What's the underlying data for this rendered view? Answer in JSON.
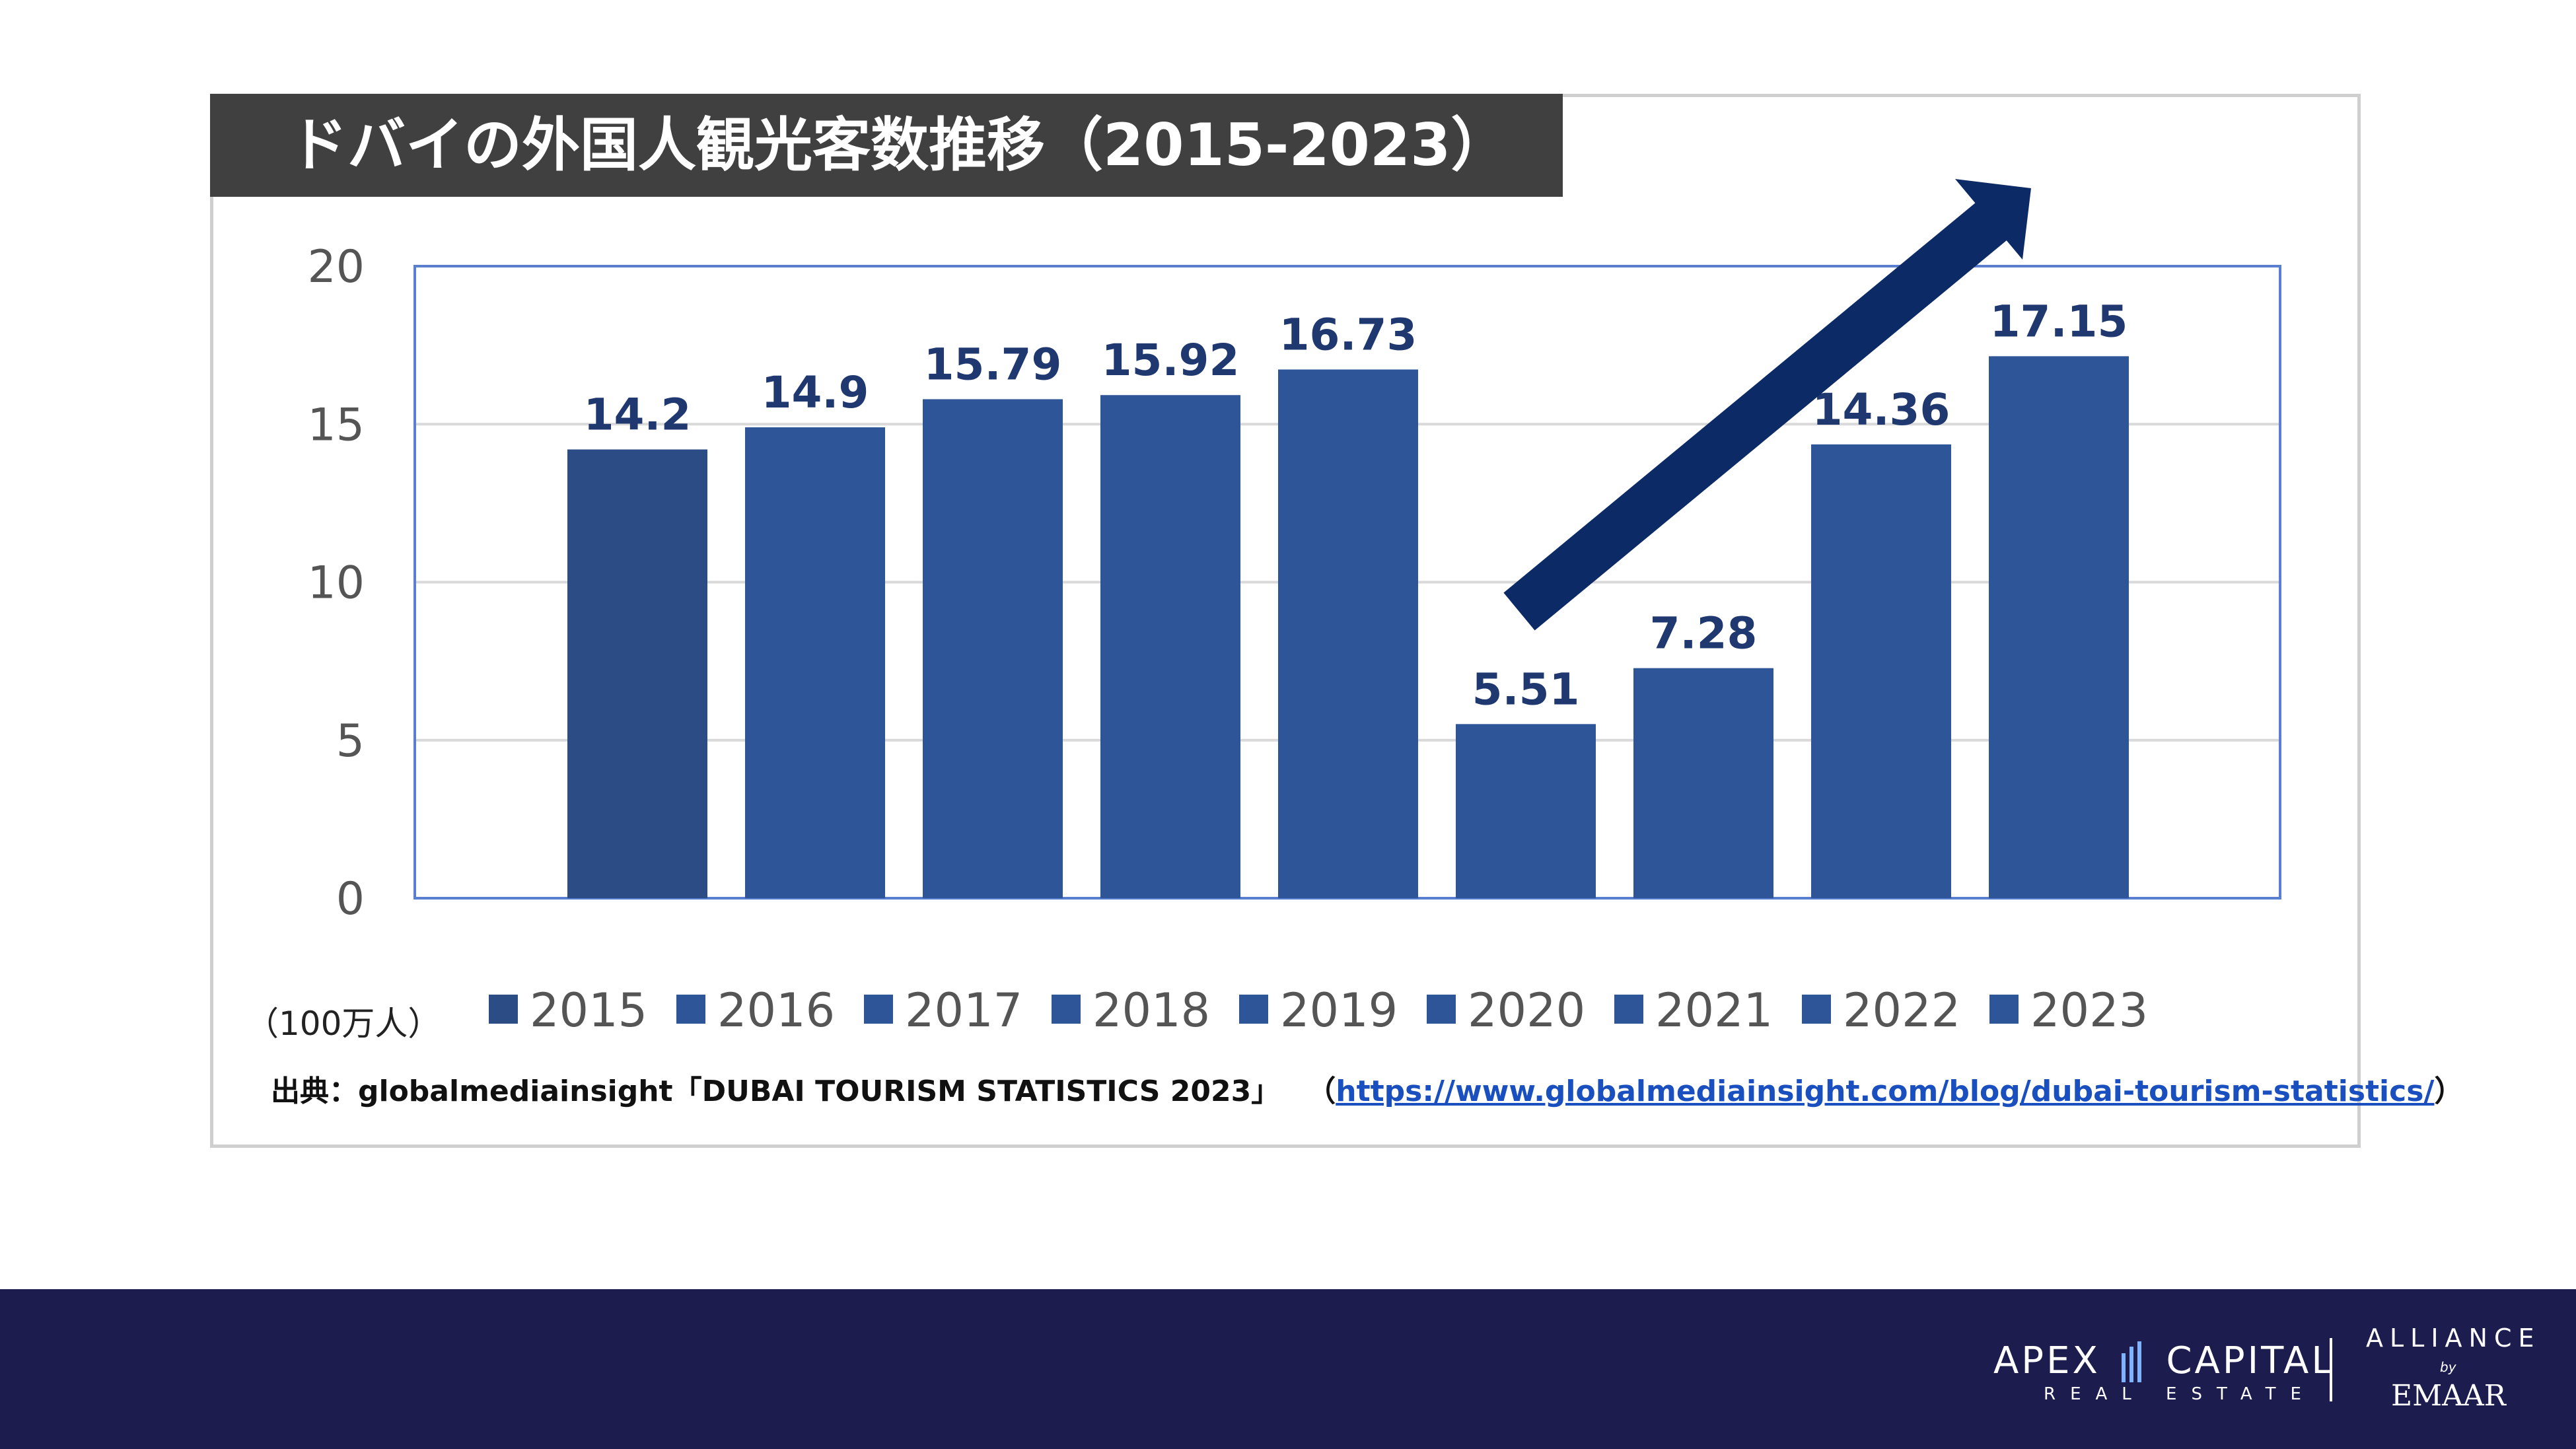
{
  "chart_data": {
    "type": "bar",
    "title": "ドバイの外国人観光客数推移（2015-2023）",
    "categories": [
      "2015",
      "2016",
      "2017",
      "2018",
      "2019",
      "2020",
      "2021",
      "2022",
      "2023"
    ],
    "values": [
      14.2,
      14.9,
      15.79,
      15.92,
      16.73,
      5.51,
      7.28,
      14.36,
      17.15
    ],
    "data_labels": [
      "14.2",
      "14.9",
      "15.79",
      "15.92",
      "16.73",
      "5.51",
      "7.28",
      "14.36",
      "17.15"
    ],
    "ylim": [
      0,
      20
    ],
    "yticks": [
      "0",
      "5",
      "10",
      "15",
      "20"
    ],
    "ytick_values": [
      0,
      5,
      10,
      15,
      20
    ],
    "ylabel": "",
    "xlabel": "",
    "unit_label": "（100万人）",
    "legend": [
      "2015",
      "2016",
      "2017",
      "2018",
      "2019",
      "2020",
      "2021",
      "2022",
      "2023"
    ],
    "legend_position": "bottom",
    "grid": true,
    "annotation": "upward-trend-arrow from 2020 to 2023",
    "colors": {
      "bar": "#2e5597",
      "bar_first": "#2b4c84",
      "label": "#1f3870",
      "arrow": "#0c2a66",
      "plot_border": "#5b7fd0",
      "grid": "#d9d9d9"
    }
  },
  "source": {
    "prefix": "出典：globalmediainsight「DUBAI TOURISM STATISTICS 2023」",
    "open_paren": "（",
    "link": "https://www.globalmediainsight.com/blog/dubai-tourism-statistics/",
    "close_paren": "）"
  },
  "footer": {
    "brand_left": "APEX",
    "brand_right": "CAPITAL",
    "brand_sub": "REAL ESTATE",
    "alliance": "ALLIANCE",
    "alliance_by": "by",
    "emaar": "EMAAR",
    "background": "#1c1c4f"
  }
}
